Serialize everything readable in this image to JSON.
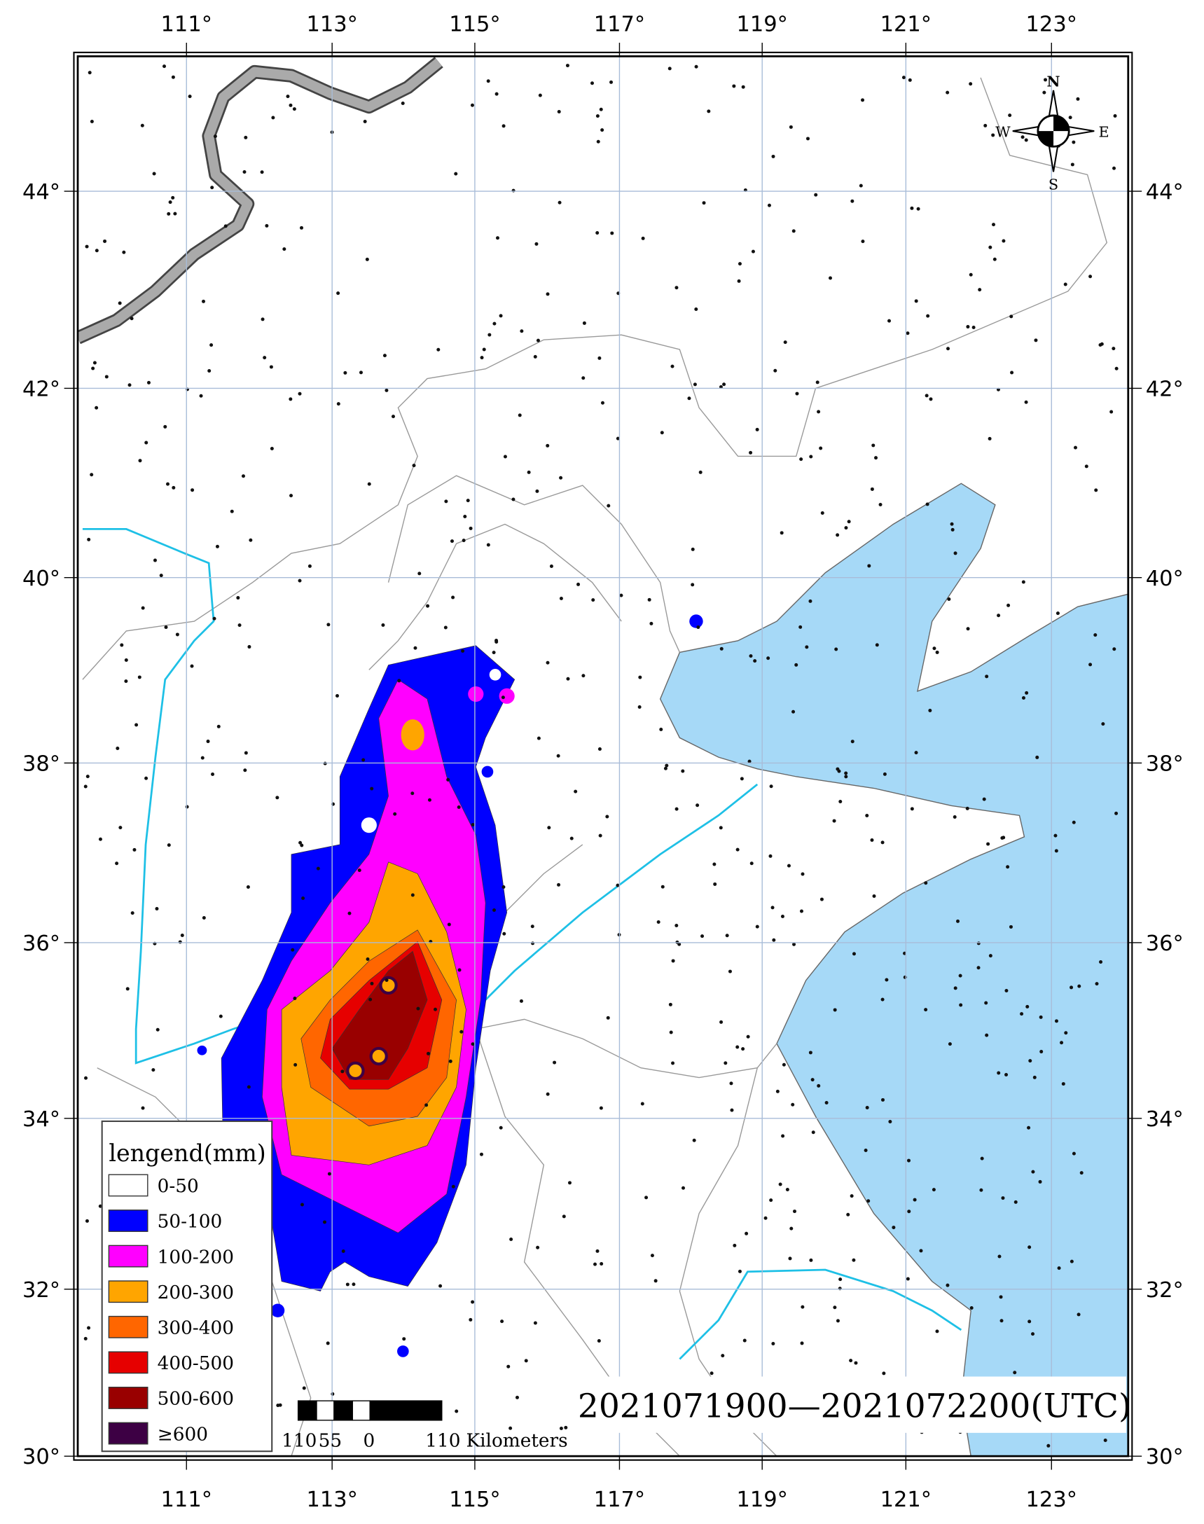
{
  "map": {
    "lon_ticks": [
      "111°",
      "113°",
      "115°",
      "117°",
      "119°",
      "121°",
      "123°"
    ],
    "lat_ticks": [
      "44°",
      "42°",
      "40°",
      "38°",
      "36°",
      "34°",
      "32°",
      "30°"
    ],
    "legend": {
      "title": "lengend(mm)",
      "items": [
        {
          "label": "0-50",
          "color": "#ffffff"
        },
        {
          "label": "50-100",
          "color": "#0000ff"
        },
        {
          "label": "100-200",
          "color": "#ff00ff"
        },
        {
          "label": "200-300",
          "color": "#ffa500"
        },
        {
          "label": "300-400",
          "color": "#ff6600"
        },
        {
          "label": "400-500",
          "color": "#e60000"
        },
        {
          "label": "500-600",
          "color": "#990000"
        },
        {
          "label": "≥600",
          "color": "#3d0044"
        }
      ]
    },
    "scale_bar": {
      "labels": [
        "110",
        "55",
        "0",
        "110",
        "Kilometers"
      ]
    },
    "time_range": "2021071900—2021072200(UTC)",
    "compass": {
      "north": "N",
      "east": "E",
      "south": "S",
      "west": "W"
    }
  }
}
